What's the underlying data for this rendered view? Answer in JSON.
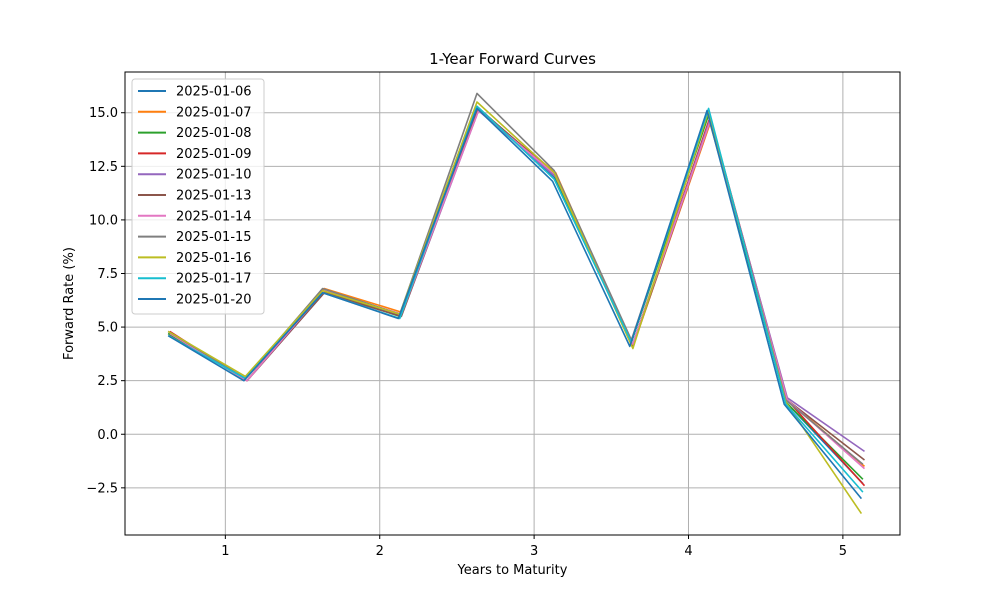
{
  "chart_data": {
    "type": "line",
    "title": "1-Year Forward Curves",
    "xlabel": "Years to Maturity",
    "ylabel": "Forward Rate (%)",
    "xlim": [
      0.35,
      5.37
    ],
    "ylim": [
      -4.7,
      16.9
    ],
    "xticks": [
      1,
      2,
      3,
      4,
      5
    ],
    "yticks": [
      -2.5,
      0.0,
      2.5,
      5.0,
      7.5,
      10.0,
      12.5,
      15.0
    ],
    "ytick_labels": [
      "−2.5",
      "0.0",
      "2.5",
      "5.0",
      "7.5",
      "10.0",
      "12.5",
      "15.0"
    ],
    "grid": true,
    "legend_position": "upper-left",
    "series": [
      {
        "name": "2025-01-06",
        "color": "#1f77b4",
        "x": [
          0.63,
          1.13,
          1.63,
          2.13,
          2.63,
          3.13,
          3.63,
          4.13,
          4.63,
          5.13
        ],
        "y": [
          4.7,
          2.6,
          6.7,
          5.6,
          15.3,
          12.0,
          4.3,
          15.0,
          1.5,
          -2.3
        ]
      },
      {
        "name": "2025-01-07",
        "color": "#ff7f0e",
        "x": [
          0.63,
          1.14,
          1.64,
          2.14,
          2.64,
          3.14,
          3.64,
          4.14,
          4.64,
          5.14
        ],
        "y": [
          4.8,
          2.5,
          6.8,
          5.7,
          15.1,
          12.2,
          4.1,
          14.5,
          1.6,
          -1.5
        ]
      },
      {
        "name": "2025-01-08",
        "color": "#2ca02c",
        "x": [
          0.63,
          1.13,
          1.63,
          2.13,
          2.63,
          3.13,
          3.63,
          4.13,
          4.63,
          5.13
        ],
        "y": [
          4.7,
          2.6,
          6.7,
          5.5,
          15.2,
          12.1,
          4.3,
          14.9,
          1.5,
          -2.1
        ]
      },
      {
        "name": "2025-01-09",
        "color": "#d62728",
        "x": [
          0.64,
          1.14,
          1.64,
          2.14,
          2.64,
          3.14,
          3.64,
          4.14,
          4.64,
          5.14
        ],
        "y": [
          4.8,
          2.5,
          6.7,
          5.6,
          15.2,
          12.1,
          4.2,
          14.8,
          1.6,
          -2.4
        ]
      },
      {
        "name": "2025-01-10",
        "color": "#9467bd",
        "x": [
          0.64,
          1.14,
          1.64,
          2.14,
          2.64,
          3.14,
          3.64,
          4.14,
          4.64,
          5.14
        ],
        "y": [
          4.7,
          2.5,
          6.6,
          5.5,
          15.1,
          12.0,
          4.2,
          14.7,
          1.7,
          -0.8
        ]
      },
      {
        "name": "2025-01-13",
        "color": "#8c564b",
        "x": [
          0.64,
          1.14,
          1.64,
          2.14,
          2.64,
          3.14,
          3.64,
          4.14,
          4.64,
          5.14
        ],
        "y": [
          4.7,
          2.5,
          6.6,
          5.5,
          15.2,
          12.1,
          4.1,
          14.6,
          1.6,
          -1.2
        ]
      },
      {
        "name": "2025-01-14",
        "color": "#e377c2",
        "x": [
          0.64,
          1.14,
          1.64,
          2.14,
          2.64,
          3.14,
          3.64,
          4.14,
          4.64,
          5.14
        ],
        "y": [
          4.7,
          2.5,
          6.7,
          5.6,
          15.1,
          12.1,
          4.2,
          14.6,
          1.6,
          -1.6
        ]
      },
      {
        "name": "2025-01-15",
        "color": "#7f7f7f",
        "x": [
          0.63,
          1.13,
          1.63,
          2.13,
          2.63,
          3.13,
          3.63,
          4.13,
          4.63,
          5.13
        ],
        "y": [
          4.8,
          2.6,
          6.8,
          5.6,
          15.9,
          12.3,
          4.4,
          15.1,
          1.6,
          -1.4
        ]
      },
      {
        "name": "2025-01-16",
        "color": "#bcbd22",
        "x": [
          0.63,
          1.13,
          1.63,
          2.13,
          2.63,
          3.13,
          3.64,
          4.13,
          4.63,
          5.12
        ],
        "y": [
          4.8,
          2.7,
          6.7,
          5.6,
          15.5,
          12.2,
          4.0,
          15.1,
          1.5,
          -3.7
        ]
      },
      {
        "name": "2025-01-17",
        "color": "#17becf",
        "x": [
          0.63,
          1.13,
          1.63,
          2.13,
          2.63,
          3.13,
          3.63,
          4.13,
          4.63,
          5.13
        ],
        "y": [
          4.6,
          2.6,
          6.6,
          5.4,
          15.3,
          11.9,
          4.3,
          15.2,
          1.4,
          -2.7
        ]
      },
      {
        "name": "2025-01-20",
        "color": "#1f77b4",
        "x": [
          0.63,
          1.12,
          1.63,
          2.12,
          2.63,
          3.12,
          3.62,
          4.12,
          4.62,
          5.12
        ],
        "y": [
          4.6,
          2.5,
          6.6,
          5.4,
          15.2,
          11.8,
          4.1,
          15.1,
          1.4,
          -3.0
        ]
      }
    ]
  }
}
